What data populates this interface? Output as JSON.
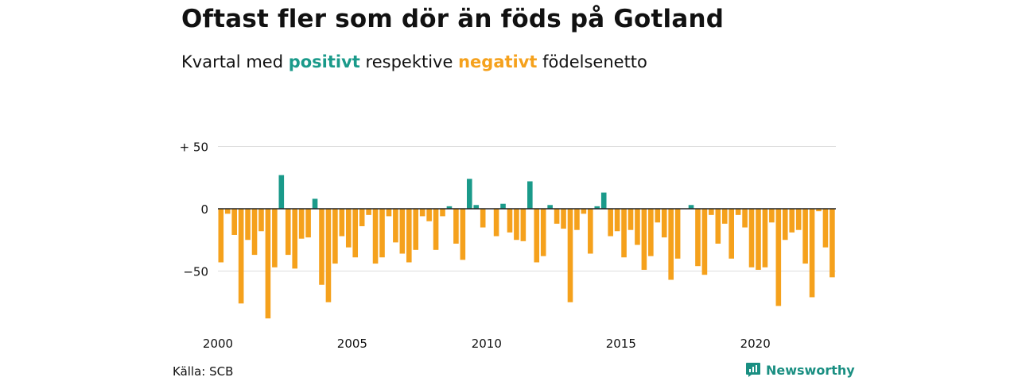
{
  "title": "Oftast fler som dör än föds på Gotland",
  "subtitle": {
    "prefix": "Kvartal med",
    "positive": "positivt",
    "middle": "respektive",
    "negative": "negativt",
    "suffix": "födelsenetto"
  },
  "source": "Källa: SCB",
  "logo": {
    "text": "Newsworthy",
    "icon": "newsworthy-chart-icon",
    "color": "#1a8f82"
  },
  "colors": {
    "positive": "#1a9a8a",
    "negative": "#f5a11c",
    "grid": "#dddddd",
    "axis": "#222222"
  },
  "chart_data": {
    "type": "bar",
    "title": "",
    "xlabel": "",
    "ylabel": "",
    "ylim": [
      -90,
      55
    ],
    "yticks": [
      {
        "value": 50,
        "label": "+ 50"
      },
      {
        "value": 0,
        "label": "0"
      },
      {
        "value": -50,
        "label": "−50"
      }
    ],
    "xtick_labels": [
      "2000",
      "2005",
      "2010",
      "2015",
      "2020"
    ],
    "xtick_years": [
      2000,
      2005,
      2010,
      2015,
      2020
    ],
    "start_year": 2000,
    "periods_per_year": 4,
    "values": [
      -43,
      -4,
      -21,
      -76,
      -25,
      -37,
      -18,
      -88,
      -47,
      27,
      -37,
      -48,
      -24,
      -23,
      8,
      -61,
      -75,
      -44,
      -22,
      -31,
      -39,
      -14,
      -5,
      -44,
      -39,
      -6,
      -27,
      -36,
      -43,
      -33,
      -6,
      -10,
      -33,
      -6,
      2,
      -28,
      -41,
      24,
      3,
      -15,
      0,
      -22,
      4,
      -19,
      -25,
      -26,
      22,
      -43,
      -38,
      3,
      -12,
      -16,
      -75,
      -17,
      -4,
      -36,
      2,
      13,
      -22,
      -18,
      -39,
      -17,
      -29,
      -49,
      -38,
      -11,
      -23,
      -57,
      -40,
      0,
      3,
      -46,
      -53,
      -5,
      -28,
      -12,
      -40,
      -5,
      -15,
      -47,
      -49,
      -47,
      -11,
      -78,
      -25,
      -19,
      -17,
      -44,
      -71,
      -2,
      -31,
      -55
    ]
  }
}
